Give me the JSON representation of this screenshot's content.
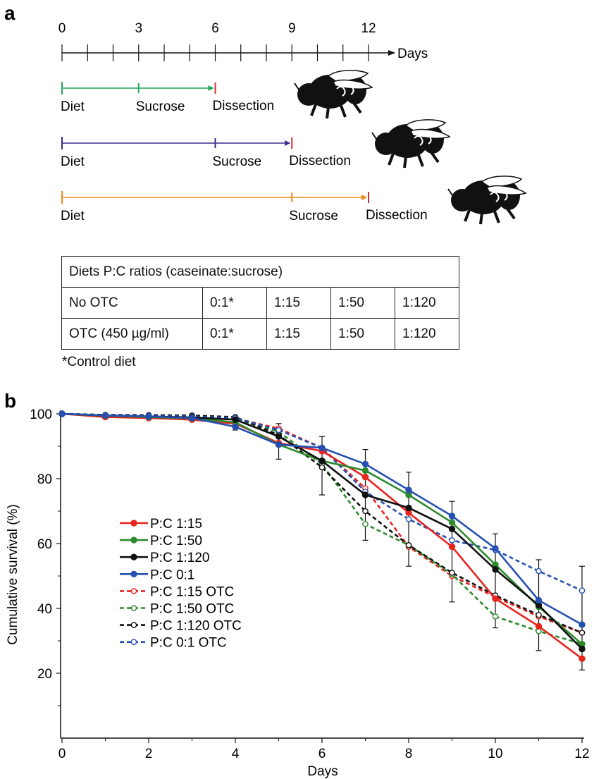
{
  "panel_a": {
    "label": "a",
    "axis_label": "Days",
    "timeline_ticks": [
      "0",
      "3",
      "6",
      "9",
      "12"
    ],
    "schedules": [
      {
        "color": "#21a65c",
        "diet": "Diet",
        "sucrose": "Sucrose",
        "dissection": "Dissection",
        "diet_day": 0,
        "sucrose_day": 3,
        "dissection_day": 6
      },
      {
        "color": "#3a2c8c",
        "diet": "Diet",
        "sucrose": "Sucrose",
        "dissection": "Dissection",
        "diet_day": 0,
        "sucrose_day": 6,
        "dissection_day": 9
      },
      {
        "color": "#f08a1c",
        "diet": "Diet",
        "sucrose": "Sucrose",
        "dissection": "Dissection",
        "diet_day": 0,
        "sucrose_day": 9,
        "dissection_day": 12
      }
    ],
    "dissection_marker_color": "#d82e2e",
    "table": {
      "header": "Diets P:C ratios (caseinate:sucrose)",
      "rows": [
        [
          "No OTC",
          "0:1*",
          "1:15",
          "1:50",
          "1:120"
        ],
        [
          "OTC (450 µg/ml)",
          "0:1*",
          "1:15",
          "1:50",
          "1:120"
        ]
      ],
      "footnote": "*Control diet"
    }
  },
  "chart_data": {
    "type": "line",
    "panel_label": "b",
    "title": "",
    "xlabel": "Days",
    "ylabel": "Cumulative survival (%)",
    "xlim": [
      0,
      12
    ],
    "ylim": [
      0,
      100
    ],
    "x_ticks": [
      0,
      2,
      4,
      6,
      8,
      10,
      12
    ],
    "y_ticks": [
      20,
      40,
      60,
      80,
      100
    ],
    "grid": false,
    "legend_position": "left",
    "x": [
      0,
      1,
      2,
      3,
      4,
      5,
      6,
      7,
      8,
      9,
      10,
      11,
      12
    ],
    "series": [
      {
        "name": "P:C 1:15",
        "color": "#e8241f",
        "dashed": false,
        "open_marker": false,
        "values": [
          100,
          99,
          98.7,
          98.2,
          97,
          91,
          88.5,
          80.5,
          69.5,
          59,
          43,
          34.5,
          24.5
        ]
      },
      {
        "name": "P:C 1:50",
        "color": "#2d8a2d",
        "dashed": false,
        "open_marker": false,
        "values": [
          100,
          99.4,
          99,
          98.6,
          97.4,
          90.5,
          85.5,
          82.5,
          75,
          66.5,
          53.5,
          40.5,
          29
        ]
      },
      {
        "name": "P:C 1:120",
        "color": "#111111",
        "dashed": false,
        "open_marker": false,
        "values": [
          100,
          99.5,
          99.2,
          98.9,
          98.2,
          93,
          85.5,
          75,
          71,
          64.5,
          52,
          41,
          27.5
        ]
      },
      {
        "name": "P:C 0:1",
        "color": "#2650b0",
        "dashed": false,
        "open_marker": false,
        "values": [
          100,
          99.5,
          99.2,
          98.7,
          96,
          90.5,
          89.5,
          84.5,
          76.5,
          68.5,
          58.5,
          42.5,
          35
        ]
      },
      {
        "name": "P:C 1:15 OTC",
        "color": "#e8241f",
        "dashed": true,
        "open_marker": true,
        "values": [
          100,
          99.5,
          99.3,
          99,
          98.6,
          95.5,
          89.5,
          77,
          59,
          50,
          43.5,
          37.5,
          32.5
        ]
      },
      {
        "name": "P:C 1:50 OTC",
        "color": "#2d8a2d",
        "dashed": true,
        "open_marker": true,
        "values": [
          100,
          99.5,
          99.3,
          99,
          98.4,
          94.5,
          84.5,
          66,
          59.5,
          50.5,
          37.5,
          33,
          29
        ]
      },
      {
        "name": "P:C 1:120 OTC",
        "color": "#111111",
        "dashed": true,
        "open_marker": true,
        "values": [
          100,
          99.7,
          99.6,
          99.5,
          99,
          93.5,
          83.5,
          70,
          59.5,
          51,
          44,
          38,
          32.5
        ]
      },
      {
        "name": "P:C 0:1 OTC",
        "color": "#2650b0",
        "dashed": true,
        "open_marker": true,
        "values": [
          100,
          99.6,
          99.4,
          99.2,
          98.7,
          95,
          89.5,
          76,
          67.5,
          61,
          58,
          51.5,
          45.5
        ]
      }
    ],
    "error_bars": {
      "x": [
        4,
        5,
        6,
        7,
        8,
        9,
        10,
        11,
        12
      ],
      "lower": [
        95,
        86,
        75,
        61,
        53,
        42,
        34,
        27,
        21
      ],
      "upper": [
        99,
        97,
        93,
        89,
        82,
        73,
        63,
        55,
        53
      ]
    }
  }
}
